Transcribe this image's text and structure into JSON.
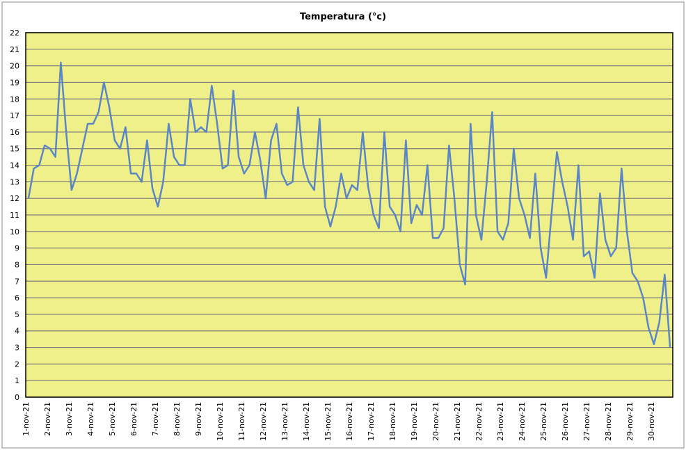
{
  "chart_data": {
    "type": "line",
    "title": "Temperatura (°c)",
    "categories": [
      "1-nov-21",
      null,
      null,
      null,
      "2-nov-21",
      null,
      null,
      null,
      "3-nov-21",
      null,
      null,
      null,
      "4-nov-21",
      null,
      null,
      null,
      "5-nov-21",
      null,
      null,
      null,
      "6-nov-21",
      null,
      null,
      null,
      "7-nov-21",
      null,
      null,
      null,
      "8-nov-21",
      null,
      null,
      null,
      "9-nov-21",
      null,
      null,
      null,
      "10-nov-21",
      null,
      null,
      null,
      "11-nov-21",
      null,
      null,
      null,
      "12-nov-21",
      null,
      null,
      null,
      "13-nov-21",
      null,
      null,
      null,
      "14-nov-21",
      null,
      null,
      null,
      "15-nov-21",
      null,
      null,
      null,
      "16-nov-21",
      null,
      null,
      null,
      "17-nov-21",
      null,
      null,
      null,
      "18-nov-21",
      null,
      null,
      null,
      "19-nov-21",
      null,
      null,
      null,
      "20-nov-21",
      null,
      null,
      null,
      "21-nov-21",
      null,
      null,
      null,
      "22-nov-21",
      null,
      null,
      null,
      "23-nov-21",
      null,
      null,
      null,
      "24-nov-21",
      null,
      null,
      null,
      "25-nov-21",
      null,
      null,
      null,
      "26-nov-21",
      null,
      null,
      null,
      "27-nov-21",
      null,
      null,
      null,
      "28-nov-21",
      null,
      null,
      null,
      "29-nov-21",
      null,
      null,
      null,
      "30-nov-21",
      null,
      null,
      null
    ],
    "series": [
      {
        "name": "Temperatura",
        "color": "#5b86c5",
        "values": [
          12,
          13.8,
          14,
          15.2,
          15,
          14.5,
          20.2,
          16,
          12.5,
          13.5,
          15,
          16.5,
          16.5,
          17.2,
          19,
          17.5,
          15.5,
          15,
          16.3,
          13.5,
          13.5,
          13,
          15.5,
          12.6,
          11.5,
          13,
          16.5,
          14.5,
          14,
          14,
          18,
          16,
          16.3,
          16,
          18.8,
          16.5,
          13.8,
          14,
          18.5,
          14.5,
          13.5,
          14,
          16,
          14.3,
          12,
          15.5,
          16.5,
          13.5,
          12.8,
          13,
          17.5,
          14,
          13,
          12.5,
          16.8,
          11.5,
          10.3,
          11.5,
          13.5,
          12,
          12.8,
          12.5,
          16,
          12.7,
          11,
          10.2,
          16,
          11.5,
          11,
          10,
          15.5,
          10.5,
          11.6,
          11,
          14,
          9.6,
          9.6,
          10.2,
          15.2,
          12,
          8,
          6.8,
          16.5,
          11,
          9.5,
          13,
          17.2,
          10,
          9.5,
          10.5,
          15,
          12,
          11,
          9.6,
          13.5,
          9,
          7.2,
          11,
          14.8,
          13,
          11.5,
          9.5,
          14,
          8.5,
          8.8,
          7.2,
          12.3,
          9.5,
          8.5,
          9,
          13.8,
          10,
          7.5,
          7,
          6,
          4.2,
          3.2,
          4.5,
          7.4,
          3
        ]
      }
    ],
    "ylim": [
      0,
      22
    ],
    "yticks": [
      0,
      1,
      2,
      3,
      4,
      5,
      6,
      7,
      8,
      9,
      10,
      11,
      12,
      13,
      14,
      15,
      16,
      17,
      18,
      19,
      20,
      21,
      22
    ],
    "grid": true
  }
}
